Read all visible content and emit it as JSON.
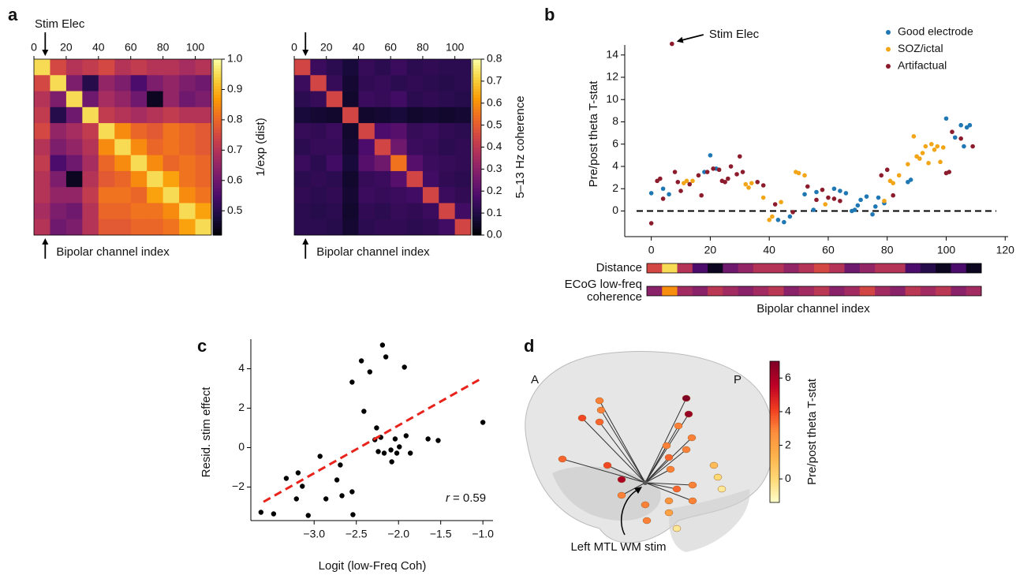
{
  "chart_data": [
    {
      "type": "heatmap",
      "panel": "a",
      "annotation": "Stim Elec",
      "stim_index": 7,
      "xlabel": "Bipolar channel index",
      "colorbar_label": "1/exp (dist)",
      "xlim": [
        0,
        110
      ],
      "xticks": [
        0,
        20,
        40,
        60,
        80,
        100
      ],
      "clim": [
        0.42,
        1.0
      ],
      "cticks": [
        0.5,
        0.6,
        0.7,
        0.8,
        0.9,
        {
          "value": 1,
          "label": "1.0"
        }
      ],
      "matrix": [
        [
          0.95,
          0.75,
          0.7,
          0.72,
          0.75,
          0.7,
          0.72,
          0.7,
          0.7,
          0.68,
          0.7
        ],
        [
          0.75,
          0.95,
          0.62,
          0.5,
          0.65,
          0.62,
          0.55,
          0.62,
          0.65,
          0.62,
          0.6
        ],
        [
          0.7,
          0.62,
          0.95,
          0.6,
          0.68,
          0.65,
          0.6,
          0.45,
          0.65,
          0.6,
          0.62
        ],
        [
          0.72,
          0.5,
          0.6,
          0.95,
          0.72,
          0.7,
          0.68,
          0.7,
          0.72,
          0.7,
          0.7
        ],
        [
          0.75,
          0.65,
          0.68,
          0.72,
          0.95,
          0.85,
          0.8,
          0.78,
          0.82,
          0.8,
          0.78
        ],
        [
          0.7,
          0.62,
          0.65,
          0.7,
          0.85,
          0.95,
          0.85,
          0.8,
          0.82,
          0.8,
          0.78
        ],
        [
          0.72,
          0.55,
          0.6,
          0.68,
          0.8,
          0.85,
          0.95,
          0.85,
          0.8,
          0.82,
          0.8
        ],
        [
          0.7,
          0.62,
          0.45,
          0.7,
          0.78,
          0.8,
          0.85,
          0.95,
          0.88,
          0.82,
          0.8
        ],
        [
          0.7,
          0.65,
          0.65,
          0.72,
          0.82,
          0.82,
          0.8,
          0.88,
          0.95,
          0.85,
          0.82
        ],
        [
          0.68,
          0.62,
          0.6,
          0.7,
          0.8,
          0.8,
          0.82,
          0.82,
          0.85,
          0.95,
          0.88
        ],
        [
          0.7,
          0.6,
          0.62,
          0.7,
          0.78,
          0.78,
          0.8,
          0.8,
          0.82,
          0.88,
          0.95
        ]
      ]
    },
    {
      "type": "heatmap",
      "stim_index": 7,
      "xlabel": "Bipolar channel index",
      "colorbar_label": "5–13 Hz coherence",
      "xlim": [
        0,
        110
      ],
      "xticks": [
        0,
        20,
        40,
        60,
        80,
        100
      ],
      "clim": [
        0,
        0.8
      ],
      "cticks": [
        {
          "value": 0,
          "label": "0.0"
        },
        0.1,
        0.2,
        0.3,
        0.4,
        0.5,
        0.6,
        0.7,
        0.8
      ],
      "matrix": [
        [
          0.45,
          0.15,
          0.12,
          0.08,
          0.14,
          0.12,
          0.15,
          0.12,
          0.13,
          0.12,
          0.12
        ],
        [
          0.15,
          0.45,
          0.14,
          0.07,
          0.13,
          0.14,
          0.12,
          0.13,
          0.12,
          0.11,
          0.12
        ],
        [
          0.12,
          0.14,
          0.45,
          0.06,
          0.15,
          0.14,
          0.16,
          0.12,
          0.13,
          0.12,
          0.11
        ],
        [
          0.08,
          0.07,
          0.06,
          0.45,
          0.06,
          0.07,
          0.08,
          0.06,
          0.07,
          0.06,
          0.07
        ],
        [
          0.14,
          0.13,
          0.15,
          0.06,
          0.45,
          0.18,
          0.2,
          0.14,
          0.15,
          0.13,
          0.12
        ],
        [
          0.12,
          0.14,
          0.14,
          0.07,
          0.18,
          0.45,
          0.25,
          0.15,
          0.14,
          0.12,
          0.13
        ],
        [
          0.15,
          0.12,
          0.16,
          0.08,
          0.2,
          0.25,
          0.55,
          0.2,
          0.15,
          0.14,
          0.13
        ],
        [
          0.12,
          0.13,
          0.12,
          0.06,
          0.14,
          0.15,
          0.2,
          0.45,
          0.16,
          0.13,
          0.12
        ],
        [
          0.13,
          0.12,
          0.13,
          0.07,
          0.15,
          0.14,
          0.15,
          0.16,
          0.45,
          0.15,
          0.13
        ],
        [
          0.12,
          0.11,
          0.12,
          0.06,
          0.13,
          0.12,
          0.14,
          0.13,
          0.15,
          0.45,
          0.16
        ],
        [
          0.12,
          0.12,
          0.11,
          0.07,
          0.12,
          0.13,
          0.13,
          0.12,
          0.13,
          0.16,
          0.45
        ]
      ]
    },
    {
      "type": "scatter",
      "panel": "b",
      "ylabel": "Pre/post theta T-stat",
      "xlabel": "Bipolar channel index",
      "annotation": "Stim Elec",
      "stim_index": 7,
      "xlim": [
        -9,
        121
      ],
      "ylim": [
        -2.3,
        14.9
      ],
      "xticks": [
        0,
        20,
        40,
        60,
        80,
        100,
        120
      ],
      "yticks": [
        0,
        2,
        4,
        6,
        8,
        10,
        12,
        14
      ],
      "hline": 0,
      "legend": "upper right",
      "series": [
        {
          "name": "Good electrode",
          "color": "#1f77b4",
          "x": [
            0,
            4,
            6,
            18,
            20,
            22,
            43,
            45,
            47,
            52,
            55,
            56,
            62,
            64,
            66,
            68,
            69,
            70,
            71,
            73,
            75,
            76,
            77,
            79,
            87,
            88,
            100,
            103,
            105,
            106,
            107,
            108
          ],
          "values": [
            1.6,
            2.0,
            1.5,
            3.5,
            5.0,
            3.8,
            -0.8,
            -1.0,
            -0.5,
            1.5,
            0.1,
            1.7,
            2.0,
            1.8,
            1.6,
            0.0,
            0.1,
            0.5,
            1.0,
            1.3,
            -0.3,
            0.4,
            1.2,
            0.7,
            2.6,
            2.8,
            8.3,
            6.6,
            7.7,
            5.8,
            7.5,
            7.7
          ]
        },
        {
          "name": "SOZ/ictal",
          "color": "#f2a516",
          "x": [
            11,
            12,
            14,
            32,
            33,
            34,
            38,
            40,
            41,
            44,
            49,
            50,
            52,
            59,
            79,
            81,
            82,
            84,
            87,
            89,
            90,
            91,
            92,
            93,
            94,
            95,
            96,
            97,
            98,
            99
          ],
          "values": [
            2.5,
            2.7,
            2.7,
            2.4,
            2.1,
            2.5,
            1.2,
            -0.8,
            -0.5,
            0.8,
            3.5,
            3.4,
            3.2,
            0.6,
            0.9,
            2.7,
            2.5,
            3.2,
            4.2,
            6.7,
            4.9,
            4.7,
            5.2,
            5.8,
            4.3,
            6.0,
            5.5,
            5.8,
            4.4,
            5.7
          ]
        },
        {
          "name": "Artifactual",
          "color": "#8c1c2c",
          "x": [
            0,
            2,
            3,
            4,
            7,
            8,
            9,
            10,
            13,
            16,
            17,
            19,
            21,
            23,
            24,
            25,
            26,
            27,
            29,
            30,
            31,
            36,
            38,
            42,
            48,
            53,
            56,
            58,
            60,
            62,
            64,
            78,
            80,
            82,
            100,
            101,
            102,
            105,
            109
          ],
          "values": [
            -1.1,
            2.7,
            2.9,
            1.1,
            15.0,
            3.5,
            2.6,
            1.8,
            2.4,
            3.2,
            1.4,
            3.5,
            3.8,
            3.7,
            2.7,
            2.6,
            2.9,
            4.0,
            3.3,
            4.9,
            3.5,
            2.6,
            2.3,
            0.6,
            -0.1,
            2.2,
            1.0,
            1.9,
            1.2,
            1.1,
            0.9,
            3.2,
            3.7,
            1.4,
            3.4,
            3.5,
            7.1,
            6.5,
            5.8
          ]
        }
      ],
      "strips": [
        {
          "label": [
            "Distance"
          ],
          "clim": [
            0.42,
            1.0
          ],
          "values": [
            0.75,
            0.95,
            0.7,
            0.55,
            0.45,
            0.6,
            0.65,
            0.7,
            0.7,
            0.65,
            0.7,
            0.75,
            0.7,
            0.6,
            0.65,
            0.7,
            0.7,
            0.55,
            0.5,
            0.45,
            0.55,
            0.45
          ]
        },
        {
          "label": [
            "ECoG low-freq",
            "coherence"
          ],
          "clim": [
            0,
            0.8
          ],
          "values": [
            0.3,
            0.6,
            0.35,
            0.3,
            0.4,
            0.35,
            0.3,
            0.35,
            0.4,
            0.3,
            0.35,
            0.4,
            0.3,
            0.35,
            0.45,
            0.35,
            0.3,
            0.4,
            0.35,
            0.4,
            0.3,
            0.35
          ]
        }
      ]
    },
    {
      "type": "scatter",
      "panel": "c",
      "xlabel": "Logit (low-Freq Coh)",
      "ylabel": "Resid. stim effect",
      "annotation": [
        "r",
        "= 0.59"
      ],
      "color": "#000000",
      "xlim": [
        -3.75,
        -0.88
      ],
      "ylim": [
        -3.7,
        5.5
      ],
      "xticks": [
        {
          "value": -3,
          "label": "−3.0"
        },
        {
          "value": -2.5,
          "label": "−2.5"
        },
        {
          "value": -2,
          "label": "−2.0"
        },
        {
          "value": -1.5,
          "label": "−1.5"
        },
        {
          "value": -1,
          "label": "−1.0"
        }
      ],
      "yticks": [
        {
          "value": -2,
          "label": "−2"
        },
        0,
        2,
        4
      ],
      "x": [
        -3.63,
        -3.48,
        -3.33,
        -3.21,
        -3.19,
        -3.14,
        -3.07,
        -2.93,
        -2.86,
        -2.73,
        -2.69,
        -2.67,
        -2.55,
        -2.55,
        -2.54,
        -2.44,
        -2.41,
        -2.34,
        -2.28,
        -2.26,
        -2.24,
        -2.21,
        -2.19,
        -2.17,
        -2.15,
        -2.09,
        -2.08,
        -2.04,
        -2.02,
        -1.99,
        -1.93,
        -1.91,
        -1.86,
        -1.65,
        -1.53,
        -1.0
      ],
      "values": [
        -3.28,
        -3.36,
        -1.56,
        -2.6,
        -1.28,
        -1.96,
        -3.44,
        -0.44,
        -2.6,
        -1.64,
        -0.88,
        -2.44,
        -2.24,
        3.32,
        -3.4,
        4.4,
        1.84,
        3.84,
        0.4,
        1.0,
        -0.2,
        0.52,
        5.2,
        -0.28,
        4.6,
        -0.12,
        -0.72,
        0.44,
        -0.28,
        0.04,
        4.08,
        0.6,
        -0.28,
        0.44,
        0.36,
        1.28
      ],
      "fit": {
        "color": "#e8231b",
        "x": [
          -3.6,
          -1.0
        ],
        "y": [
          -2.75,
          3.55
        ]
      }
    },
    {
      "type": "brain",
      "panel": "d",
      "labels": [
        "A",
        "P"
      ],
      "annotation": "Left MTL WM stim",
      "colorbar_label": "Pre/post theta T-stat",
      "clim": [
        -1.4,
        7.0
      ],
      "cticks": [
        0,
        2,
        4,
        6
      ],
      "electrodes": [
        3,
        3,
        3.5,
        4,
        4,
        3.5,
        3,
        7.0,
        6.5,
        3,
        3,
        3,
        3,
        3.5,
        3,
        3.5,
        3,
        3,
        1,
        0,
        -0.5,
        -0.5,
        2,
        2.5,
        3,
        3,
        6
      ]
    }
  ]
}
